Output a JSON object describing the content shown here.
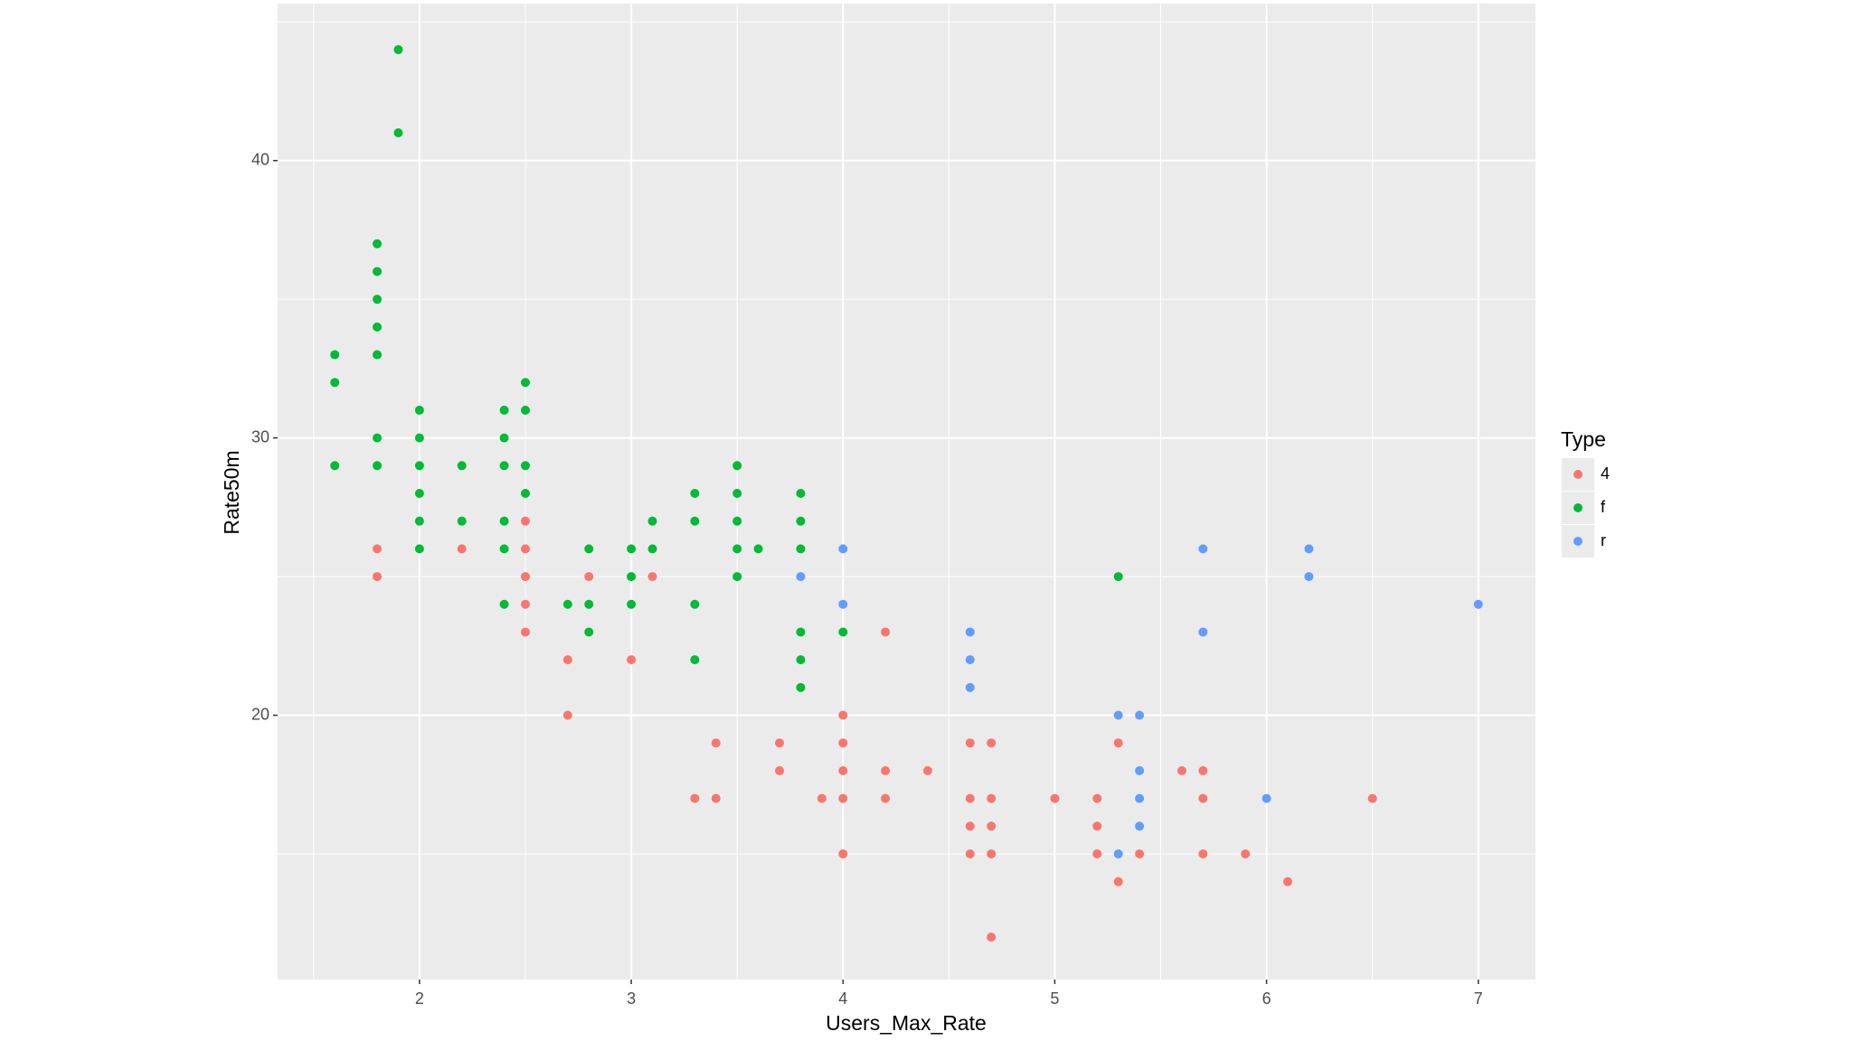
{
  "chart_data": {
    "type": "scatter",
    "x_label": "Users_Max_Rate",
    "y_label": "Rate50m",
    "legend_title": "Type",
    "legend": "right",
    "grid": true,
    "background": "#EBEBEB",
    "xlim": [
      1.33,
      7.27
    ],
    "ylim": [
      10.47,
      45.66
    ],
    "xticks": [
      2,
      3,
      4,
      5,
      6,
      7
    ],
    "yticks": [
      20,
      30,
      40
    ],
    "x_minor_ticks": [
      1.5,
      2.5,
      3.5,
      4.5,
      5.5,
      6.5
    ],
    "y_minor_ticks": [
      15,
      25,
      35,
      45
    ],
    "series": [
      {
        "name": "4",
        "color": "#F8766D",
        "x": [
          1.8,
          1.8,
          2.2,
          2.5,
          2.5,
          2.5,
          2.5,
          2.5,
          2.7,
          2.7,
          2.8,
          3.0,
          3.1,
          3.3,
          3.4,
          3.4,
          3.7,
          3.7,
          3.9,
          4.0,
          4.0,
          4.0,
          4.0,
          4.0,
          4.2,
          4.2,
          4.2,
          4.4,
          4.6,
          4.6,
          4.6,
          4.6,
          4.7,
          4.7,
          4.7,
          4.7,
          4.7,
          5.0,
          5.2,
          5.2,
          5.2,
          5.3,
          5.3,
          5.4,
          5.6,
          5.7,
          5.7,
          5.7,
          5.9,
          6.1,
          6.5
        ],
        "y": [
          26,
          25,
          26,
          27,
          26,
          25,
          24,
          23,
          22,
          20,
          25,
          22,
          25,
          17,
          19,
          17,
          19,
          18,
          17,
          20,
          19,
          18,
          17,
          15,
          23,
          18,
          17,
          18,
          19,
          17,
          16,
          15,
          19,
          17,
          16,
          15,
          12,
          17,
          17,
          16,
          15,
          19,
          14,
          15,
          18,
          18,
          17,
          15,
          15,
          14,
          17
        ]
      },
      {
        "name": "f",
        "color": "#00BA38",
        "x": [
          1.6,
          1.6,
          1.6,
          1.8,
          1.8,
          1.8,
          1.8,
          1.8,
          1.8,
          1.8,
          1.9,
          1.9,
          2.0,
          2.0,
          2.0,
          2.0,
          2.0,
          2.0,
          2.2,
          2.2,
          2.4,
          2.4,
          2.4,
          2.4,
          2.4,
          2.4,
          2.5,
          2.5,
          2.5,
          2.5,
          2.7,
          2.8,
          2.8,
          2.8,
          3.0,
          3.0,
          3.0,
          3.1,
          3.1,
          3.3,
          3.3,
          3.3,
          3.3,
          3.5,
          3.5,
          3.5,
          3.5,
          3.5,
          3.6,
          3.8,
          3.8,
          3.8,
          3.8,
          3.8,
          3.8,
          4.0,
          5.3
        ],
        "y": [
          33,
          32,
          29,
          37,
          36,
          35,
          34,
          33,
          30,
          29,
          44,
          41,
          31,
          30,
          29,
          28,
          27,
          26,
          29,
          27,
          31,
          30,
          29,
          27,
          26,
          24,
          32,
          31,
          29,
          28,
          24,
          26,
          24,
          23,
          26,
          25,
          24,
          27,
          26,
          28,
          27,
          24,
          22,
          29,
          28,
          27,
          26,
          25,
          26,
          28,
          27,
          26,
          23,
          22,
          21,
          23,
          25
        ]
      },
      {
        "name": "r",
        "color": "#619CFF",
        "x": [
          3.8,
          4.0,
          4.0,
          4.6,
          4.6,
          4.6,
          5.3,
          5.3,
          5.4,
          5.4,
          5.4,
          5.4,
          5.7,
          5.7,
          6.0,
          6.2,
          6.2,
          7.0
        ],
        "y": [
          25,
          26,
          24,
          23,
          22,
          21,
          20,
          15,
          20,
          18,
          17,
          16,
          26,
          23,
          17,
          26,
          25,
          24
        ]
      }
    ]
  }
}
